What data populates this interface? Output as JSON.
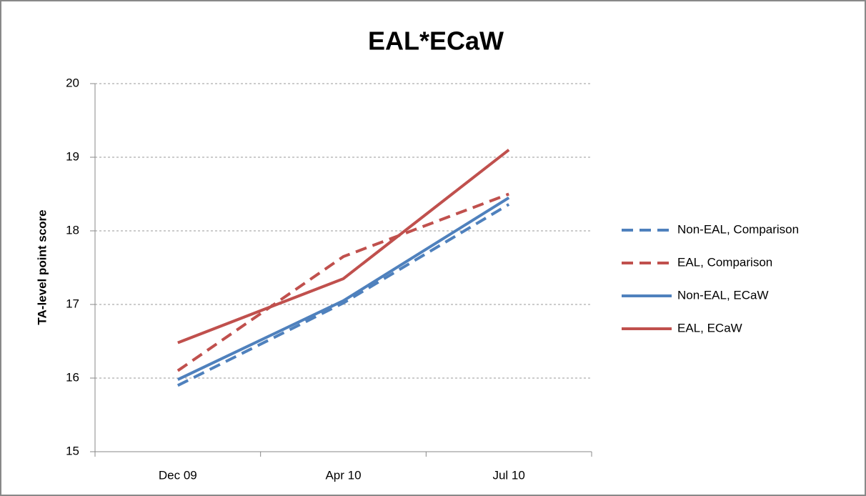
{
  "chart_data": {
    "type": "line",
    "title": "EAL*ECaW",
    "y_label": "TA-level point score",
    "categories": [
      "Dec 09",
      "Apr 10",
      "Jul 10"
    ],
    "series": [
      {
        "name": "Non-EAL, Comparison",
        "color": "#4f81bd",
        "dashed": true,
        "values": [
          15.9,
          17.02,
          18.36
        ]
      },
      {
        "name": "EAL, Comparison",
        "color": "#c0504d",
        "dashed": true,
        "values": [
          16.1,
          17.65,
          18.5
        ]
      },
      {
        "name": "Non-EAL, ECaW",
        "color": "#4f81bd",
        "dashed": false,
        "values": [
          15.98,
          17.05,
          18.45
        ]
      },
      {
        "name": "EAL, ECaW",
        "color": "#c0504d",
        "dashed": false,
        "values": [
          16.48,
          17.35,
          19.1
        ]
      }
    ],
    "ylim": [
      15,
      20
    ],
    "yticks": [
      15,
      16,
      17,
      18,
      19,
      20
    ],
    "grid": true,
    "legend": "right"
  }
}
